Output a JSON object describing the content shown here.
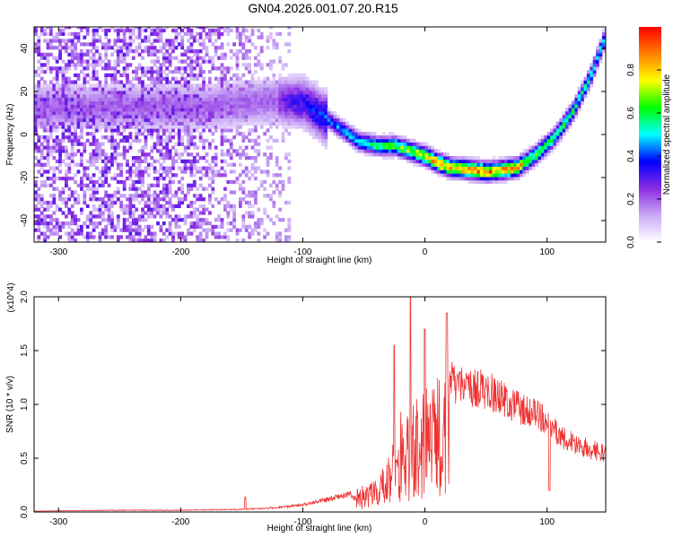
{
  "page_title": "GN04.2026.001.07.20.R15",
  "chart_data": [
    {
      "type": "heatmap",
      "title": "GN04.2026.001.07.20.R15",
      "xlabel": "Height of straight line (km)",
      "ylabel": "Frequency (Hz)",
      "xlim": [
        -320,
        148
      ],
      "ylim": [
        -50,
        50
      ],
      "xticks": [
        -300,
        -200,
        -100,
        0,
        100
      ],
      "yticks": [
        -40,
        -20,
        0,
        20,
        40
      ],
      "colorbar": {
        "label": "Normalized spectral amplitude",
        "range": [
          0,
          1
        ],
        "ticks": [
          "0.0",
          "0.2",
          "0.4",
          "0.6",
          "0.8"
        ],
        "colors": [
          "#ffffff",
          "#c9a9f5",
          "#8a2be2",
          "#0000ff",
          "#00ffff",
          "#00ff00",
          "#ffff00",
          "#ff8000",
          "#ff0000"
        ]
      },
      "ridge": {
        "x": [
          -180,
          -150,
          -120,
          -100,
          -85,
          -70,
          -55,
          -40,
          -25,
          -10,
          0,
          10,
          20,
          35,
          50,
          65,
          75,
          90,
          105,
          120,
          135,
          148
        ],
        "y": [
          12,
          14,
          15,
          14,
          8,
          2,
          -4,
          -6,
          -6,
          -9,
          -11,
          -14,
          -16,
          -17,
          -18,
          -17,
          -16,
          -10,
          -2,
          10,
          27,
          47
        ]
      }
    },
    {
      "type": "line",
      "title": "",
      "xlabel": "Height of straight line (km)",
      "ylabel": "SNR (10 * v/v)",
      "multiplier": "(x10^4)",
      "xlim": [
        -320,
        148
      ],
      "ylim": [
        0,
        2.0
      ],
      "xticks": [
        -300,
        -200,
        -100,
        0,
        100
      ],
      "yticks": [
        "0.0",
        "0.5",
        "1.0",
        "1.5",
        "2.0"
      ],
      "color": "#ee3333",
      "envelope": {
        "x": [
          -320,
          -250,
          -200,
          -150,
          -120,
          -100,
          -80,
          -60,
          -50,
          -40,
          -30,
          -20,
          -10,
          0,
          10,
          20,
          30,
          40,
          50,
          60,
          70,
          80,
          90,
          100,
          110,
          120,
          130,
          140,
          148
        ],
        "y": [
          0.01,
          0.02,
          0.02,
          0.03,
          0.05,
          0.08,
          0.14,
          0.22,
          0.25,
          0.3,
          0.5,
          0.85,
          1.0,
          1.2,
          1.3,
          1.42,
          1.37,
          1.35,
          1.32,
          1.26,
          1.18,
          1.1,
          1.05,
          0.98,
          0.82,
          0.76,
          0.7,
          0.66,
          0.62
        ]
      },
      "spikes": [
        {
          "x": -12,
          "y": 2.0
        },
        {
          "x": 0,
          "y": 1.7
        },
        {
          "x": 18,
          "y": 1.85
        },
        {
          "x": -25,
          "y": 1.55
        },
        {
          "x": 102,
          "y": 0.2
        },
        {
          "x": -147,
          "y": 0.14
        }
      ]
    }
  ]
}
